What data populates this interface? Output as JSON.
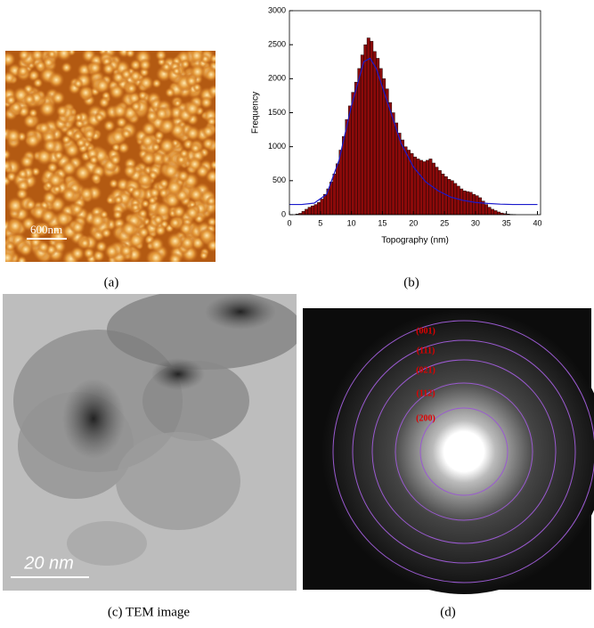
{
  "panels": {
    "a": {
      "caption": "(a)",
      "scale_bar": "600nm"
    },
    "b": {
      "caption": "(b)"
    },
    "c": {
      "caption": "(c) TEM image",
      "scale_bar": "20 nm"
    },
    "d": {
      "caption": "(d)",
      "ring_labels": [
        "(001)",
        "(111)",
        "(021)",
        "(112)",
        "(200)"
      ]
    }
  },
  "chart_data": {
    "type": "histogram",
    "xlabel": "Topography (nm)",
    "ylabel": "Frequency",
    "bins": [
      0,
      0.5,
      1,
      1.5,
      2,
      2.5,
      3,
      3.5,
      4,
      4.5,
      5,
      5.5,
      6,
      6.5,
      7,
      7.5,
      8,
      8.5,
      9,
      9.5,
      10,
      10.5,
      11,
      11.5,
      12,
      12.5,
      13,
      13.5,
      14,
      14.5,
      15,
      15.5,
      16,
      16.5,
      17,
      17.5,
      18,
      18.5,
      19,
      19.5,
      20,
      20.5,
      21,
      21.5,
      22,
      22.5,
      23,
      23.5,
      24,
      24.5,
      25,
      25.5,
      26,
      26.5,
      27,
      27.5,
      28,
      28.5,
      29,
      29.5,
      30,
      30.5,
      31,
      31.5,
      32,
      32.5,
      33,
      33.5,
      34,
      34.5,
      35,
      35.5,
      36,
      36.5,
      37
    ],
    "values": [
      0,
      0,
      10,
      20,
      50,
      80,
      110,
      130,
      150,
      180,
      230,
      300,
      380,
      480,
      600,
      750,
      950,
      1150,
      1400,
      1600,
      1800,
      1950,
      2150,
      2350,
      2500,
      2600,
      2550,
      2400,
      2300,
      2150,
      2000,
      1850,
      1650,
      1500,
      1350,
      1200,
      1100,
      1000,
      950,
      900,
      850,
      820,
      800,
      780,
      800,
      820,
      760,
      700,
      650,
      600,
      560,
      520,
      500,
      460,
      420,
      380,
      350,
      340,
      330,
      300,
      280,
      250,
      200,
      150,
      110,
      80,
      60,
      40,
      25,
      15,
      10,
      5,
      3,
      0
    ],
    "color": "#8b0a0a",
    "fit": {
      "color": "#1a1acc",
      "x": [
        0,
        2,
        4,
        6,
        8,
        10,
        12,
        13,
        14,
        16,
        18,
        20,
        22,
        24,
        26,
        28,
        30,
        32,
        34,
        36,
        38,
        40
      ],
      "values": [
        150,
        150,
        170,
        300,
        800,
        1600,
        2250,
        2300,
        2150,
        1600,
        1050,
        700,
        480,
        350,
        260,
        210,
        180,
        165,
        155,
        150,
        150,
        150
      ]
    },
    "xlim": [
      0,
      40.5
    ],
    "ylim": [
      0,
      3000
    ],
    "xticks": [
      0,
      5,
      10,
      15,
      20,
      25,
      30,
      35,
      40
    ],
    "yticks": [
      0,
      500,
      1000,
      1500,
      2000,
      2500,
      3000
    ]
  }
}
